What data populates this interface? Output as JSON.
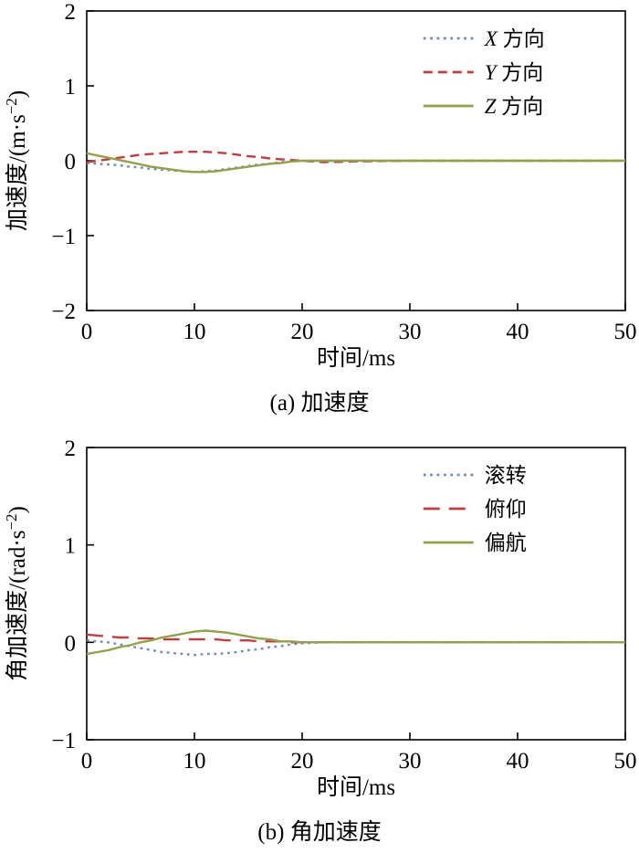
{
  "page": {
    "background": "#ffffff"
  },
  "chart_data": [
    {
      "type": "line",
      "caption": "(a) 加速度",
      "xlabel": "时间/ms",
      "ylabel": "加速度/(m·s⁻²)",
      "xlim": [
        0,
        50
      ],
      "ylim": [
        -2,
        2
      ],
      "xticks": [
        0,
        10,
        20,
        30,
        40,
        50
      ],
      "yticks": [
        -2,
        -1,
        0,
        1,
        2
      ],
      "grid": false,
      "legend_position": "top-right",
      "x": [
        0,
        1,
        2,
        3,
        4,
        5,
        6,
        7,
        8,
        9,
        10,
        11,
        12,
        13,
        14,
        15,
        16,
        17,
        18,
        19,
        20,
        22,
        25,
        30,
        35,
        40,
        45,
        50
      ],
      "series": [
        {
          "name": "X 方向",
          "color": "#7289c0",
          "style": "dotted",
          "values": [
            -0.03,
            -0.04,
            -0.05,
            -0.06,
            -0.08,
            -0.09,
            -0.11,
            -0.12,
            -0.13,
            -0.14,
            -0.15,
            -0.14,
            -0.13,
            -0.11,
            -0.09,
            -0.07,
            -0.05,
            -0.04,
            -0.02,
            -0.01,
            0,
            0,
            0,
            0,
            0,
            0,
            0,
            0
          ]
        },
        {
          "name": "Y 方向",
          "color": "#c23d3d",
          "style": "dashed",
          "values": [
            -0.02,
            0,
            0.02,
            0.04,
            0.06,
            0.08,
            0.09,
            0.1,
            0.11,
            0.12,
            0.12,
            0.12,
            0.11,
            0.1,
            0.08,
            0.06,
            0.05,
            0.03,
            0.02,
            0.01,
            0,
            -0.02,
            -0.01,
            0,
            0,
            0,
            0,
            0
          ]
        },
        {
          "name": "Z 方向",
          "color": "#93a14e",
          "style": "solid",
          "values": [
            0.1,
            0.07,
            0.04,
            0.01,
            -0.02,
            -0.05,
            -0.08,
            -0.1,
            -0.12,
            -0.14,
            -0.15,
            -0.15,
            -0.14,
            -0.12,
            -0.1,
            -0.08,
            -0.06,
            -0.04,
            -0.03,
            -0.01,
            0,
            0,
            0,
            0,
            0,
            0,
            0,
            0
          ]
        }
      ]
    },
    {
      "type": "line",
      "caption": "(b) 角加速度",
      "xlabel": "时间/ms",
      "ylabel": "角加速度/(rad·s⁻²)",
      "xlim": [
        0,
        50
      ],
      "ylim": [
        -1,
        2
      ],
      "xticks": [
        0,
        10,
        20,
        30,
        40,
        50
      ],
      "yticks": [
        -1,
        0,
        1,
        2
      ],
      "grid": false,
      "legend_position": "top-right",
      "x": [
        0,
        1,
        2,
        3,
        4,
        5,
        6,
        7,
        8,
        9,
        10,
        11,
        12,
        13,
        14,
        15,
        16,
        17,
        18,
        19,
        20,
        22,
        25,
        30,
        35,
        40,
        45,
        50
      ],
      "series": [
        {
          "name": "滚转",
          "color": "#7289c0",
          "style": "dotted",
          "values": [
            0.02,
            0.01,
            0,
            -0.02,
            -0.04,
            -0.06,
            -0.08,
            -0.1,
            -0.11,
            -0.12,
            -0.13,
            -0.12,
            -0.12,
            -0.11,
            -0.1,
            -0.08,
            -0.07,
            -0.05,
            -0.04,
            -0.02,
            -0.01,
            0,
            0,
            0,
            0,
            0,
            0,
            0
          ]
        },
        {
          "name": "俯仰",
          "color": "#c23d3d",
          "style": "longdash",
          "values": [
            0.08,
            0.07,
            0.06,
            0.05,
            0.05,
            0.04,
            0.04,
            0.03,
            0.03,
            0.03,
            0.03,
            0.03,
            0.03,
            0.02,
            0.02,
            0.02,
            0.01,
            0.01,
            0.01,
            0,
            0,
            0,
            0,
            0,
            0,
            0,
            0,
            0
          ]
        },
        {
          "name": "偏航",
          "color": "#93a14e",
          "style": "solid",
          "values": [
            -0.12,
            -0.1,
            -0.08,
            -0.05,
            -0.03,
            0,
            0.02,
            0.05,
            0.07,
            0.09,
            0.11,
            0.12,
            0.11,
            0.1,
            0.08,
            0.06,
            0.04,
            0.03,
            0.01,
            0.01,
            0,
            0,
            0,
            0,
            0,
            0,
            0,
            0
          ]
        }
      ]
    }
  ]
}
